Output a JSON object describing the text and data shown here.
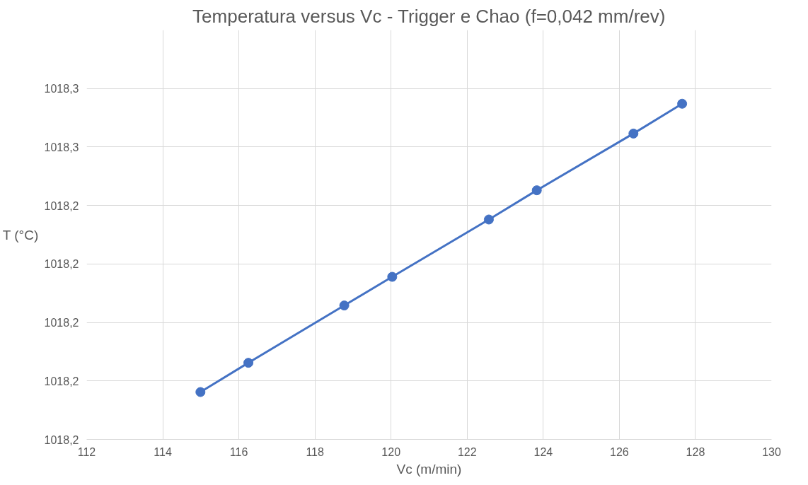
{
  "chart_data": {
    "type": "line",
    "title": "Temperatura versus Vc - Trigger e Chao (f=0,042 mm/rev)",
    "xlabel": "Vc (m/min)",
    "ylabel": "T (°C)",
    "x": [
      114.99,
      116.25,
      118.77,
      120.03,
      122.57,
      123.83,
      126.37,
      127.65
    ],
    "series": [
      {
        "color": "#4472c4",
        "values": [
          1018.2081,
          1018.2131,
          1018.2229,
          1018.2278,
          1018.2376,
          1018.2426,
          1018.2523,
          1018.2574
        ]
      }
    ],
    "xlim": [
      112,
      130
    ],
    "xticks": [
      112,
      114,
      116,
      118,
      120,
      122,
      124,
      126,
      128,
      130
    ],
    "ylim": [
      1018.2,
      1018.27
    ],
    "yticks": [
      {
        "value": 1018.2,
        "label": "1018,2"
      },
      {
        "value": 1018.21,
        "label": "1018,2"
      },
      {
        "value": 1018.22,
        "label": "1018,2"
      },
      {
        "value": 1018.23,
        "label": "1018,2"
      },
      {
        "value": 1018.24,
        "label": "1018,2"
      },
      {
        "value": 1018.25,
        "label": "1018,3"
      },
      {
        "value": 1018.26,
        "label": "1018,3"
      }
    ],
    "grid": true,
    "marker": "circle",
    "line_style": "solid"
  }
}
